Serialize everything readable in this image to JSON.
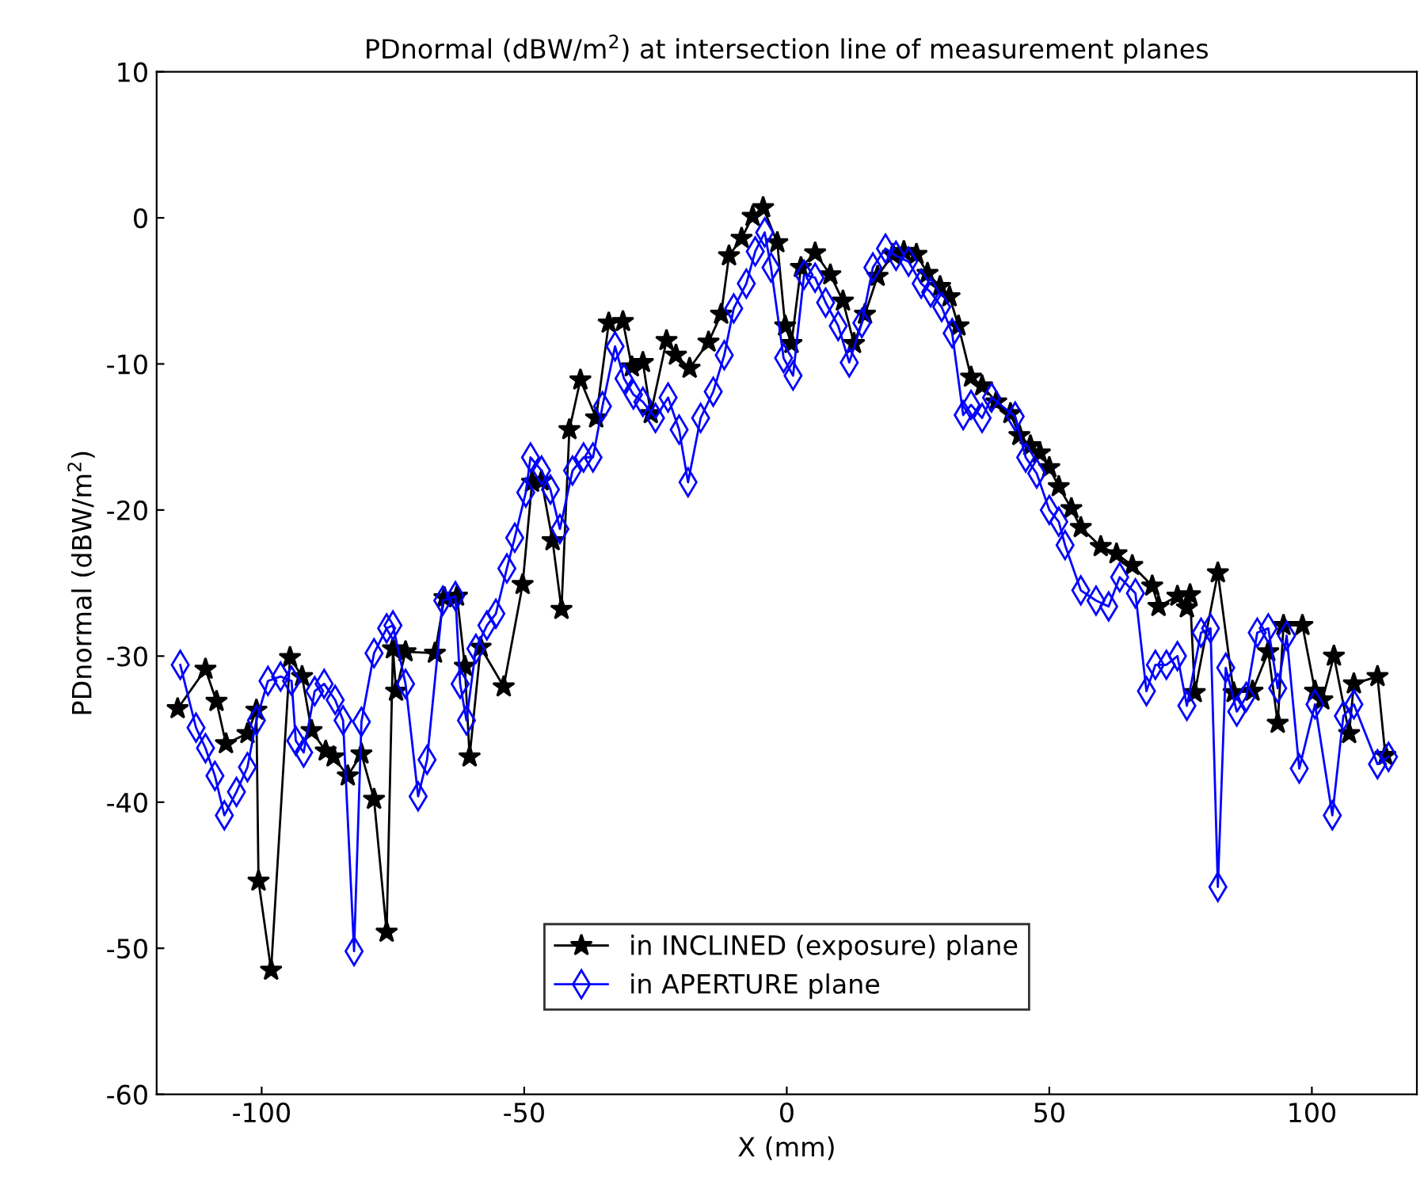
{
  "chart_data": {
    "type": "line",
    "title": "PDnormal (dBW/m$^{2}$) at intersection line of measurement planes",
    "xlabel": "X (mm)",
    "ylabel": "PDnormal (dBW/m$^{2}$)",
    "xlim": [
      -120,
      120
    ],
    "xticks": [
      -100,
      -50,
      0,
      50,
      100
    ],
    "ylim": [
      -60,
      10
    ],
    "yticks": [
      -60,
      -50,
      -40,
      -30,
      -20,
      -10,
      0,
      10
    ],
    "grid": false,
    "legend": "bottom",
    "line_style": "solid",
    "series": [
      {
        "name": "in INCLINED (exposure) plane",
        "color": "#000000",
        "marker": "star",
        "x": [
          -116,
          -110.7,
          -108.6,
          -106.8,
          -102.7,
          -101,
          -100.6,
          -98.2,
          -94.6,
          -92.3,
          -90.5,
          -87.8,
          -86.3,
          -83.6,
          -81,
          -78.6,
          -76.2,
          -75,
          -74.4,
          -72.6,
          -67,
          -65.2,
          -62.8,
          -61.3,
          -60.4,
          -58.3,
          -53.9,
          -50.3,
          -48.5,
          -46.7,
          -44.6,
          -42.9,
          -41.4,
          -39.3,
          -36.3,
          -33.9,
          -31.2,
          -29.5,
          -27.4,
          -25.9,
          -22.9,
          -21.1,
          -18.5,
          -14.9,
          -12.5,
          -11,
          -8.6,
          -6.5,
          -4.5,
          -1.8,
          -0.3,
          0.9,
          2.7,
          5.4,
          8.3,
          10.7,
          12.8,
          14.9,
          17.3,
          20.2,
          22.3,
          24.7,
          26.8,
          29.2,
          31,
          32.7,
          35.1,
          37.2,
          39.9,
          42.6,
          44.3,
          46.4,
          48.2,
          50,
          51.8,
          54.2,
          56,
          59.8,
          62.8,
          65.8,
          69.6,
          70.8,
          74.4,
          76.2,
          76.8,
          77.7,
          82.1,
          85.1,
          88.7,
          91.7,
          93.5,
          94.6,
          98.2,
          100.6,
          102,
          104.2,
          107.1,
          108,
          112.5,
          114
        ],
        "values": [
          -33.6,
          -30.9,
          -33.1,
          -36,
          -35.3,
          -33.7,
          -45.4,
          -51.5,
          -30.1,
          -31.4,
          -35.1,
          -36.5,
          -36.9,
          -38.2,
          -36.7,
          -39.8,
          -48.9,
          -29.5,
          -32.4,
          -29.7,
          -29.8,
          -26,
          -25.9,
          -30.7,
          -36.9,
          -29.4,
          -32.1,
          -25.1,
          -18.1,
          -18,
          -22.1,
          -26.8,
          -14.5,
          -11.1,
          -13.7,
          -7.2,
          -7.1,
          -10.2,
          -9.9,
          -13.4,
          -8.4,
          -9.4,
          -10.3,
          -8.5,
          -6.6,
          -2.6,
          -1.4,
          0.1,
          0.7,
          -1.7,
          -7.4,
          -8.6,
          -3.4,
          -2.4,
          -3.9,
          -5.7,
          -8.6,
          -6.6,
          -4,
          -2.5,
          -2.3,
          -2.5,
          -3.8,
          -4.7,
          -5.4,
          -7.4,
          -10.9,
          -11.5,
          -12.6,
          -13.4,
          -14.9,
          -15.6,
          -16.1,
          -17.1,
          -18.4,
          -19.9,
          -21.2,
          -22.5,
          -23,
          -23.8,
          -25.2,
          -26.6,
          -25.9,
          -26.7,
          -25.8,
          -32.5,
          -24.3,
          -32.5,
          -32.4,
          -29.7,
          -34.6,
          -27.9,
          -27.9,
          -32.4,
          -33,
          -30,
          -35.3,
          -31.9,
          -31.4,
          -36.8
        ]
      },
      {
        "name": "in APERTURE plane",
        "color": "#0000ff",
        "marker": "diamond",
        "x": [
          -115.5,
          -112.5,
          -110.7,
          -108.9,
          -107.1,
          -104.8,
          -102.7,
          -101,
          -98.8,
          -96.4,
          -94.3,
          -93.5,
          -92,
          -89.9,
          -88.1,
          -86,
          -84.5,
          -82.4,
          -81,
          -78.6,
          -76.2,
          -75,
          -72.6,
          -70.2,
          -68.5,
          -65.5,
          -63.1,
          -62.2,
          -61,
          -59.2,
          -57.1,
          -55.4,
          -53.3,
          -51.8,
          -49.7,
          -48.8,
          -46.7,
          -45,
          -43.2,
          -40.8,
          -38.7,
          -36.9,
          -35.1,
          -32.7,
          -31,
          -29.2,
          -27.4,
          -25,
          -22.6,
          -20.5,
          -18.8,
          -16.4,
          -14,
          -11.9,
          -10.1,
          -7.7,
          -6,
          -4.2,
          -3,
          -0.6,
          1.2,
          3.3,
          5.4,
          7.4,
          9.8,
          11.9,
          14.3,
          16.4,
          18.8,
          20.8,
          23.2,
          25.6,
          27.4,
          29.5,
          31.5,
          33.6,
          35.1,
          37.2,
          39,
          43.5,
          45.5,
          47.6,
          50,
          51.8,
          53,
          56,
          58.9,
          61.3,
          63.4,
          66.4,
          68.5,
          70.2,
          72.3,
          74.4,
          76.2,
          78.9,
          80.7,
          82.1,
          83.6,
          85.7,
          87.5,
          89.6,
          91.7,
          93.5,
          95.2,
          97.6,
          100.6,
          103.9,
          106,
          108,
          112.5,
          114.6
        ],
        "values": [
          -30.6,
          -34.9,
          -36.3,
          -38.2,
          -40.9,
          -39.3,
          -37.6,
          -34.4,
          -31.7,
          -31.4,
          -31.7,
          -35.8,
          -36.6,
          -32.4,
          -31.9,
          -33,
          -34.4,
          -50.2,
          -34.5,
          -29.8,
          -28.1,
          -27.9,
          -31.9,
          -39.6,
          -37.1,
          -26.2,
          -25.9,
          -31.9,
          -34.4,
          -29.5,
          -27.9,
          -27.1,
          -24,
          -21.9,
          -18.8,
          -16.4,
          -17.3,
          -18.6,
          -21.3,
          -17.3,
          -16.4,
          -16.4,
          -12.9,
          -8.8,
          -11,
          -12.1,
          -12.6,
          -13.7,
          -12.3,
          -14.5,
          -18.1,
          -13.7,
          -11.9,
          -9.4,
          -6.2,
          -4.5,
          -2.3,
          -1,
          -3.4,
          -9.6,
          -10.8,
          -3.9,
          -4.1,
          -5.8,
          -7.4,
          -9.9,
          -7.2,
          -3.4,
          -2.1,
          -2.6,
          -3,
          -4.5,
          -5.1,
          -6.1,
          -7.9,
          -13.5,
          -12.8,
          -13.7,
          -12.3,
          -13.6,
          -16.4,
          -17.5,
          -20,
          -20.8,
          -22.4,
          -25.5,
          -26.2,
          -26.6,
          -24.6,
          -25.7,
          -32.4,
          -30.6,
          -30.6,
          -30,
          -33.4,
          -28.4,
          -28.1,
          -45.8,
          -30.8,
          -33.8,
          -32.8,
          -28.4,
          -28.1,
          -32.2,
          -28.6,
          -37.7,
          -33.3,
          -40.9,
          -34.1,
          -33.3,
          -37.4,
          -36.9
        ]
      }
    ]
  }
}
